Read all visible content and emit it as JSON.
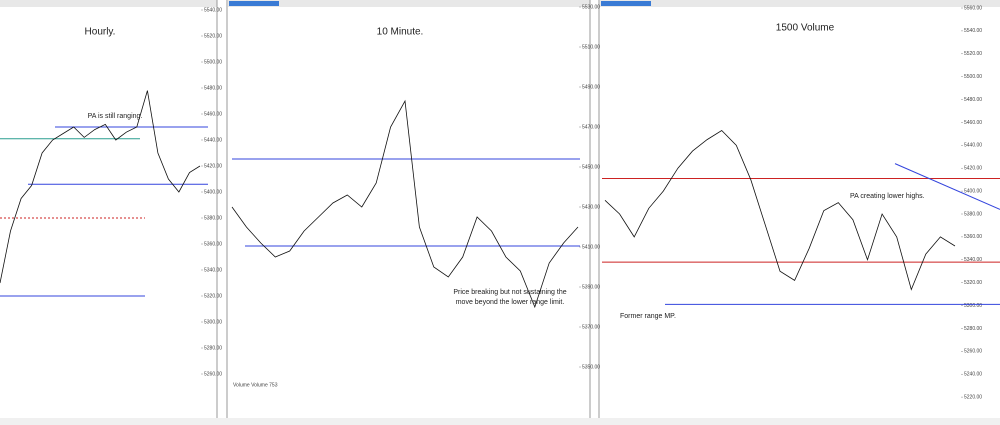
{
  "panels": [
    {
      "title": "Hourly.",
      "annotations": [
        "PA is still ranging."
      ],
      "ylim": [
        5240,
        5540
      ],
      "yticks": [
        {
          "value": 5540,
          "label": "5540.00"
        },
        {
          "value": 5520,
          "label": "5520.00"
        },
        {
          "value": 5500,
          "label": "5500.00"
        },
        {
          "value": 5480,
          "label": "5480.00"
        },
        {
          "value": 5460,
          "label": "5460.00"
        },
        {
          "value": 5440,
          "label": "5440.00"
        },
        {
          "value": 5420,
          "label": "5420.00"
        },
        {
          "value": 5400,
          "label": "5400.00"
        },
        {
          "value": 5380,
          "label": "5380.00"
        },
        {
          "value": 5360,
          "label": "5360.00"
        },
        {
          "value": 5340,
          "label": "5340.00"
        },
        {
          "value": 5320,
          "label": "5320.00"
        },
        {
          "value": 5300,
          "label": "5300.00"
        },
        {
          "value": 5280,
          "label": "5280.00"
        },
        {
          "value": 5260,
          "label": "5260.00"
        }
      ],
      "price": [
        5330,
        5370,
        5395,
        5405,
        5430,
        5440,
        5445,
        5450,
        5442,
        5448,
        5452,
        5440,
        5446,
        5450,
        5478,
        5430,
        5410,
        5400,
        5415,
        5420
      ],
      "levels": [
        {
          "value": 5450,
          "color": "#3344dd"
        },
        {
          "value": 5441,
          "color": "#2a9d8f"
        },
        {
          "value": 5406,
          "color": "#3344dd"
        },
        {
          "value": 5380,
          "color": "#cc2222",
          "dashed": true
        },
        {
          "value": 5320,
          "color": "#3344dd"
        }
      ]
    },
    {
      "title": "10 Minute.",
      "annotations": [
        "Price breaking but not sustaining the",
        "move beyond the lower range limit."
      ],
      "volume_label": "Volume  Volume 753",
      "ylim": [
        5330,
        5530
      ],
      "yticks": [
        {
          "value": 5530,
          "label": "5530.00"
        },
        {
          "value": 5510,
          "label": "5510.00"
        },
        {
          "value": 5490,
          "label": "5490.00"
        },
        {
          "value": 5470,
          "label": "5470.00"
        },
        {
          "value": 5450,
          "label": "5450.00"
        },
        {
          "value": 5430,
          "label": "5430.00"
        },
        {
          "value": 5410,
          "label": "5410.00"
        },
        {
          "value": 5390,
          "label": "5390.00"
        },
        {
          "value": 5370,
          "label": "5370.00"
        },
        {
          "value": 5350,
          "label": "5350.00"
        }
      ],
      "price": [
        5430,
        5420,
        5412,
        5405,
        5408,
        5418,
        5425,
        5432,
        5436,
        5430,
        5442,
        5470,
        5483,
        5420,
        5400,
        5395,
        5405,
        5425,
        5418,
        5405,
        5398,
        5380,
        5402,
        5412,
        5420
      ],
      "levels": [
        {
          "value": 5454,
          "color": "#3344dd"
        },
        {
          "value": 5410.5,
          "color": "#3344dd"
        }
      ]
    },
    {
      "title": "1500 Volume",
      "annotations": [
        "PA creating lower highs.",
        "Former range MP."
      ],
      "ylim": [
        5200,
        5560
      ],
      "yticks": [
        {
          "value": 5560,
          "label": "5560.00"
        },
        {
          "value": 5540,
          "label": "5540.00"
        },
        {
          "value": 5520,
          "label": "5520.00"
        },
        {
          "value": 5500,
          "label": "5500.00"
        },
        {
          "value": 5480,
          "label": "5480.00"
        },
        {
          "value": 5460,
          "label": "5460.00"
        },
        {
          "value": 5440,
          "label": "5440.00"
        },
        {
          "value": 5420,
          "label": "5420.00"
        },
        {
          "value": 5400,
          "label": "5400.00"
        },
        {
          "value": 5380,
          "label": "5380.00"
        },
        {
          "value": 5360,
          "label": "5360.00"
        },
        {
          "value": 5340,
          "label": "5340.00"
        },
        {
          "value": 5320,
          "label": "5320.00"
        },
        {
          "value": 5300,
          "label": "5300.00"
        },
        {
          "value": 5280,
          "label": "5280.00"
        },
        {
          "value": 5260,
          "label": "5260.00"
        },
        {
          "value": 5240,
          "label": "5240.00"
        },
        {
          "value": 5220,
          "label": "5220.00"
        }
      ],
      "price": [
        5392,
        5380,
        5360,
        5385,
        5400,
        5420,
        5435,
        5445,
        5453,
        5440,
        5410,
        5370,
        5330,
        5322,
        5350,
        5383,
        5390,
        5375,
        5340,
        5380,
        5360,
        5314,
        5345,
        5360,
        5352
      ],
      "levels": [
        {
          "value": 5411,
          "color": "#cc2222"
        },
        {
          "value": 5338,
          "color": "#cc2222"
        },
        {
          "value": 5301,
          "color": "#3344dd"
        },
        {
          "from": 5424,
          "to": 5384,
          "color": "#3344dd"
        }
      ]
    }
  ]
}
